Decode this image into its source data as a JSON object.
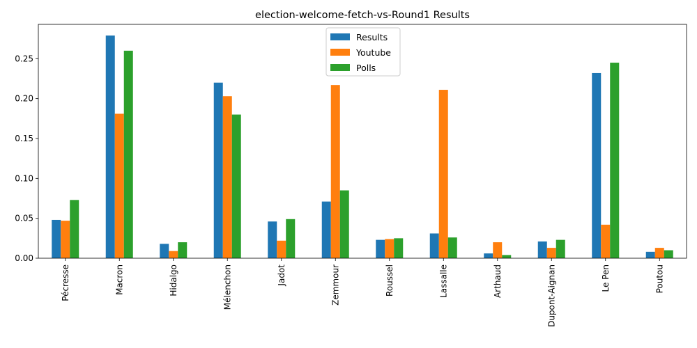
{
  "chart_data": {
    "type": "bar",
    "title": "election-welcome-fetch-vs-Round1 Results",
    "xlabel": "",
    "ylabel": "",
    "categories": [
      "Pécresse",
      "Macron",
      "Hidalgo",
      "Mélenchon",
      "Jadot",
      "Zemmour",
      "Roussel",
      "Lassalle",
      "Arthaud",
      "Dupont-Aignan",
      "Le Pen",
      "Poutou"
    ],
    "series": [
      {
        "name": "Results",
        "color": "#1f77b4",
        "values": [
          0.048,
          0.279,
          0.018,
          0.22,
          0.046,
          0.071,
          0.023,
          0.031,
          0.006,
          0.021,
          0.232,
          0.008
        ]
      },
      {
        "name": "Youtube",
        "color": "#ff7f0e",
        "values": [
          0.047,
          0.181,
          0.009,
          0.203,
          0.022,
          0.217,
          0.024,
          0.211,
          0.02,
          0.013,
          0.042,
          0.013
        ]
      },
      {
        "name": "Polls",
        "color": "#2ca02c",
        "values": [
          0.073,
          0.26,
          0.02,
          0.18,
          0.049,
          0.085,
          0.025,
          0.026,
          0.004,
          0.023,
          0.245,
          0.01
        ]
      }
    ],
    "ylim": [
      0,
      0.293
    ],
    "yticks": [
      0.0,
      0.05,
      0.1,
      0.15,
      0.2,
      0.25
    ],
    "ytick_labels": [
      "0.00",
      "0.05",
      "0.10",
      "0.15",
      "0.20",
      "0.25"
    ],
    "grid": false,
    "legend_position": "top-center"
  }
}
